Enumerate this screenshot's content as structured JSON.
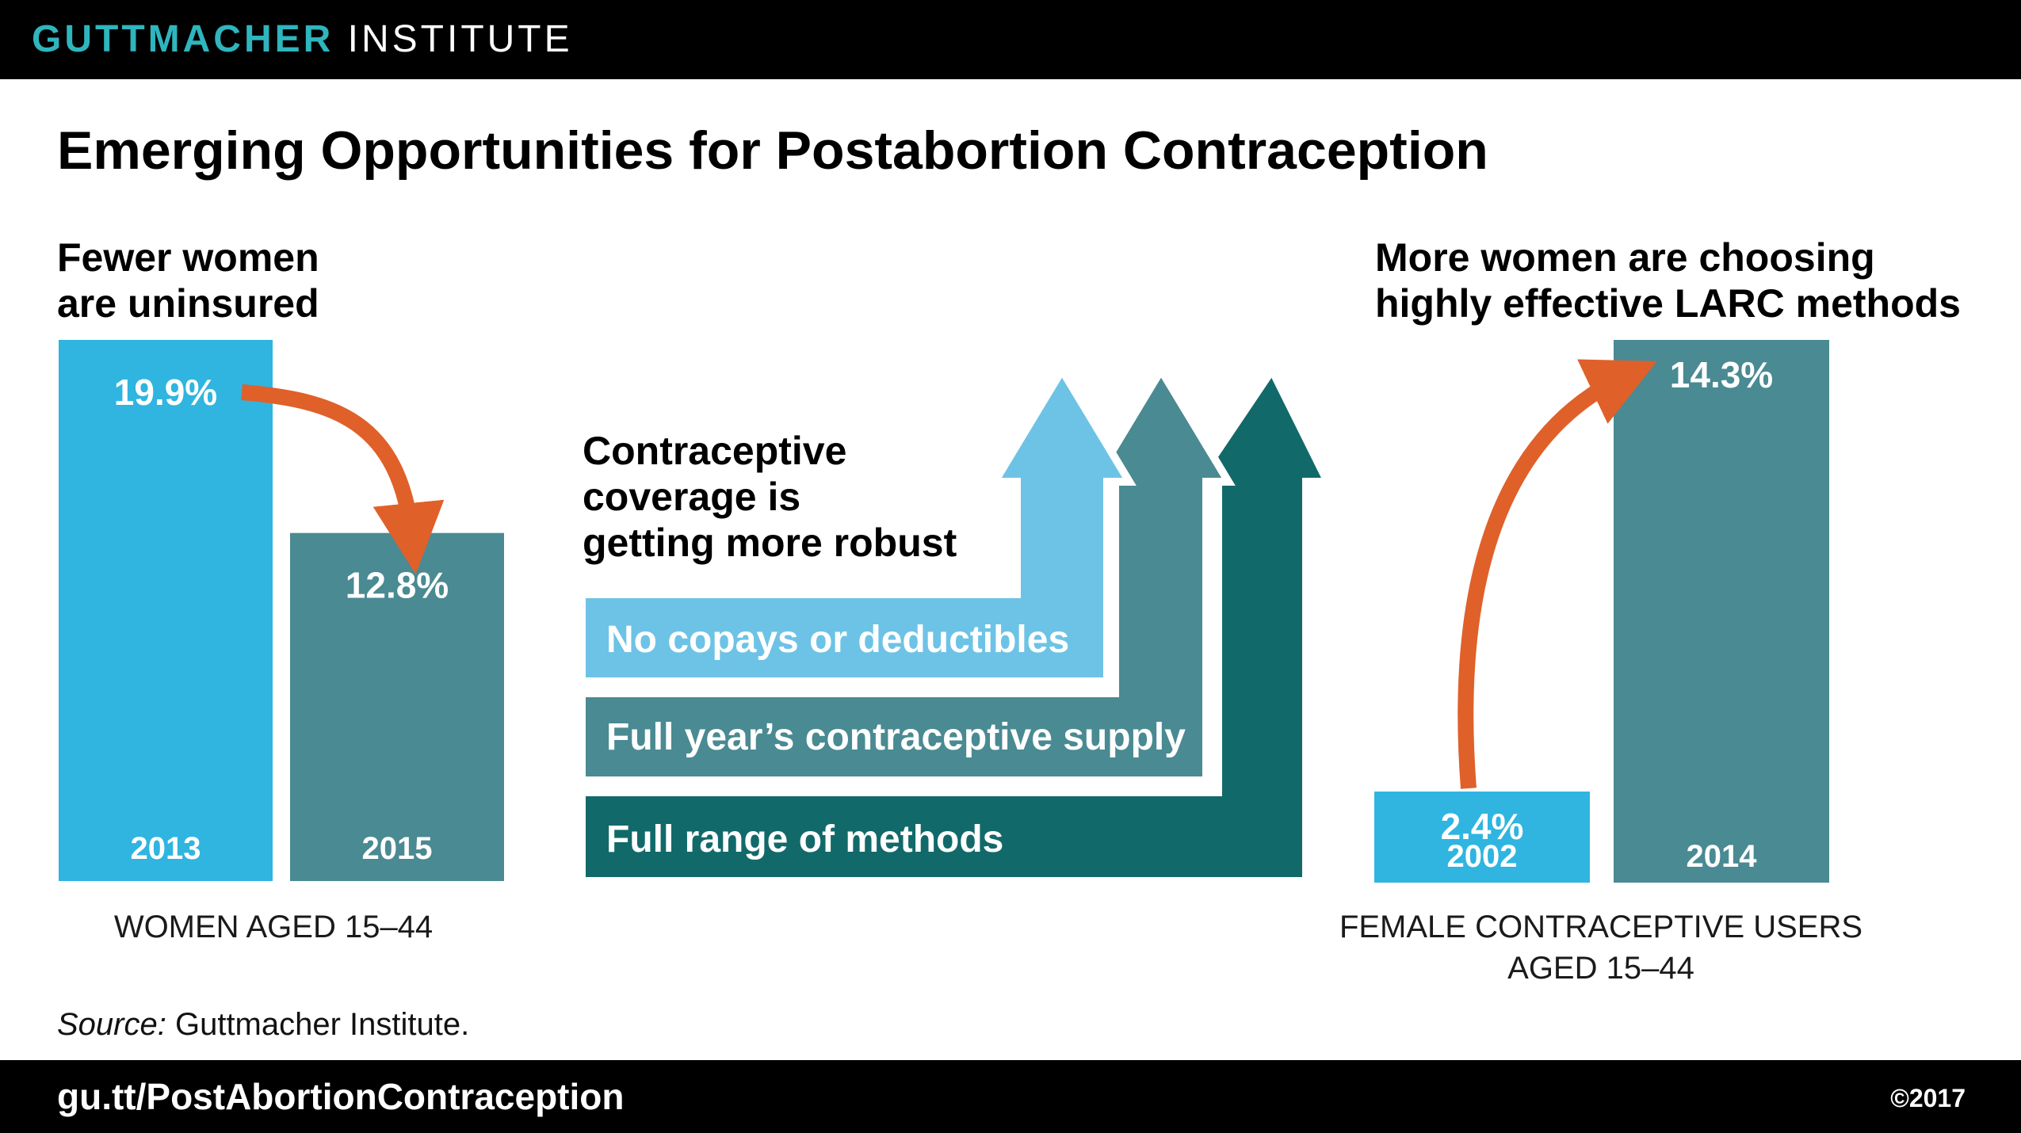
{
  "header": {
    "brand_bold": "GUTTMACHER",
    "brand_light": "INSTITUTE"
  },
  "title": "Emerging Opportunities for Postabortion Contraception",
  "left_panel": {
    "heading_line1": "Fewer women",
    "heading_line2": "are uninsured",
    "axis_label": "WOMEN AGED 15–44"
  },
  "middle_panel": {
    "heading_line1": "Contraceptive",
    "heading_line2": "coverage is",
    "heading_line3": "getting more robust",
    "steps": [
      "No copays or deductibles",
      "Full year’s contraceptive supply",
      "Full range of methods"
    ]
  },
  "right_panel": {
    "heading_line1": "More women are choosing",
    "heading_line2": "highly effective LARC methods",
    "axis_label_line1": "FEMALE CONTRACEPTIVE USERS",
    "axis_label_line2": "AGED 15–44"
  },
  "source_prefix": "Source:",
  "source_text": " Guttmacher Institute.",
  "footer": {
    "url": "gu.tt/PostAbortionContraception",
    "copyright": "©2017"
  },
  "colors": {
    "light_blue": "#2fb5e0",
    "teal": "#4a8a92",
    "sky": "#6dc3e6",
    "dark_teal": "#12696a",
    "arrow_orange": "#e0602a"
  },
  "chart_data": [
    {
      "type": "bar",
      "title": "Fewer women are uninsured",
      "xlabel": "WOMEN AGED 15–44",
      "categories": [
        "2013",
        "2015"
      ],
      "values": [
        19.9,
        12.8
      ],
      "value_labels": [
        "19.9%",
        "12.8%"
      ],
      "unit": "%",
      "ylim": [
        0,
        19.9
      ]
    },
    {
      "type": "bar",
      "title": "More women are choosing highly effective LARC methods",
      "xlabel": "FEMALE CONTRACEPTIVE USERS AGED 15–44",
      "categories": [
        "2002",
        "2014"
      ],
      "values": [
        2.4,
        14.3
      ],
      "value_labels": [
        "2.4%",
        "14.3%"
      ],
      "unit": "%",
      "ylim": [
        0,
        14.3
      ]
    }
  ]
}
